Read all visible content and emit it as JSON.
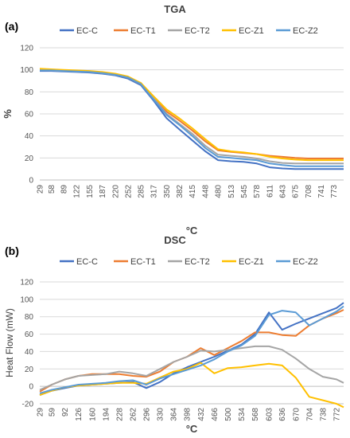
{
  "chart_data": [
    {
      "type": "line",
      "panel_label": "(a)",
      "title": "TGA",
      "xlabel": "°C",
      "ylabel": "%",
      "ylim": [
        0,
        120
      ],
      "yticks": [
        0,
        20,
        40,
        60,
        80,
        100,
        120
      ],
      "grid": true,
      "legend_position": "top",
      "categories": [
        "29",
        "58",
        "89",
        "122",
        "155",
        "187",
        "220",
        "252",
        "285",
        "317",
        "350",
        "382",
        "415",
        "448",
        "480",
        "513",
        "545",
        "578",
        "611",
        "643",
        "675",
        "708",
        "741",
        "773"
      ],
      "x": [
        29,
        58,
        89,
        122,
        155,
        187,
        220,
        252,
        285,
        317,
        350,
        382,
        415,
        448,
        480,
        513,
        545,
        578,
        611,
        643,
        675,
        708,
        741,
        773,
        798
      ],
      "series": [
        {
          "name": "EC-C",
          "color": "#4472C4",
          "values": [
            99,
            99,
            98.5,
            98,
            97.5,
            96.5,
            95,
            92,
            86,
            72,
            56,
            46,
            36,
            26,
            18,
            17,
            16.5,
            15,
            11.5,
            10.5,
            10,
            10,
            10,
            10,
            10
          ]
        },
        {
          "name": "EC-T1",
          "color": "#ED7D31",
          "values": [
            100,
            100,
            99.5,
            99,
            98.5,
            97.5,
            96,
            93,
            87,
            74,
            62,
            54,
            45,
            35,
            27,
            25.5,
            24.5,
            23.5,
            22,
            21,
            20,
            19.5,
            19.5,
            19.5,
            19.5
          ]
        },
        {
          "name": "EC-T2",
          "color": "#A5A5A5",
          "values": [
            100,
            99.5,
            99,
            98.5,
            98,
            97,
            95.5,
            93,
            88,
            74,
            60,
            51,
            42,
            31,
            23,
            22,
            21,
            19.5,
            17,
            15.5,
            15,
            15,
            15,
            15,
            15
          ]
        },
        {
          "name": "EC-Z1",
          "color": "#FFC000",
          "values": [
            101,
            100.5,
            100,
            99.5,
            99,
            98,
            96.5,
            94,
            88,
            76,
            64,
            56,
            47,
            37,
            28,
            26,
            25,
            23.5,
            21,
            19.5,
            18.5,
            18,
            18,
            18,
            18
          ]
        },
        {
          "name": "EC-Z2",
          "color": "#5B9BD5",
          "values": [
            99.5,
            99.5,
            99,
            98.5,
            98,
            97,
            95.5,
            93,
            87,
            73,
            59,
            50,
            40,
            29,
            21,
            20,
            19,
            18,
            15,
            13.5,
            12.5,
            12.5,
            12.5,
            12.5,
            12.5
          ]
        }
      ]
    },
    {
      "type": "line",
      "panel_label": "(b)",
      "title": "DSC",
      "xlabel": "°C",
      "ylabel": "Heat Flow (mW)",
      "ylim": [
        -20,
        120
      ],
      "yticks": [
        -20,
        0,
        20,
        40,
        60,
        80,
        100,
        120
      ],
      "grid": true,
      "legend_position": "top",
      "categories": [
        "29",
        "59",
        "92",
        "126",
        "160",
        "194",
        "228",
        "262",
        "296",
        "330",
        "364",
        "398",
        "432",
        "466",
        "500",
        "534",
        "568",
        "603",
        "636",
        "670",
        "704",
        "738",
        "772"
      ],
      "x": [
        29,
        59,
        92,
        126,
        160,
        194,
        228,
        262,
        296,
        330,
        364,
        398,
        432,
        466,
        500,
        534,
        568,
        603,
        636,
        670,
        704,
        738,
        772,
        790
      ],
      "series": [
        {
          "name": "EC-C",
          "color": "#4472C4",
          "values": [
            -10,
            -5,
            -2,
            1,
            2,
            3,
            4,
            5,
            -2,
            5,
            15,
            22,
            28,
            34,
            41,
            48,
            60,
            85,
            65,
            72,
            78,
            84,
            90,
            96
          ]
        },
        {
          "name": "EC-T1",
          "color": "#ED7D31",
          "values": [
            -6,
            2,
            8,
            12,
            14,
            14,
            14,
            12,
            11,
            17,
            28,
            34,
            44,
            36,
            44,
            52,
            62,
            62,
            59,
            58,
            70,
            78,
            84,
            88
          ]
        },
        {
          "name": "EC-T2",
          "color": "#A5A5A5",
          "values": [
            -4,
            2,
            8,
            12,
            13,
            14,
            17,
            15,
            12,
            20,
            28,
            34,
            41,
            40,
            42,
            44,
            46,
            46,
            42,
            32,
            20,
            11,
            8,
            4
          ]
        },
        {
          "name": "EC-Z1",
          "color": "#FFC000",
          "values": [
            -10,
            -5,
            -1,
            1,
            2,
            3,
            4,
            4,
            3,
            10,
            17,
            20,
            27,
            15,
            21,
            22,
            24,
            26,
            24,
            10,
            -12,
            -16,
            -20,
            -24
          ]
        },
        {
          "name": "EC-Z2",
          "color": "#5B9BD5",
          "values": [
            -8,
            -4,
            -1,
            2,
            3,
            4,
            6,
            7,
            2,
            9,
            14,
            19,
            24,
            31,
            40,
            47,
            58,
            82,
            87,
            85,
            70,
            78,
            86,
            92
          ]
        }
      ]
    }
  ]
}
